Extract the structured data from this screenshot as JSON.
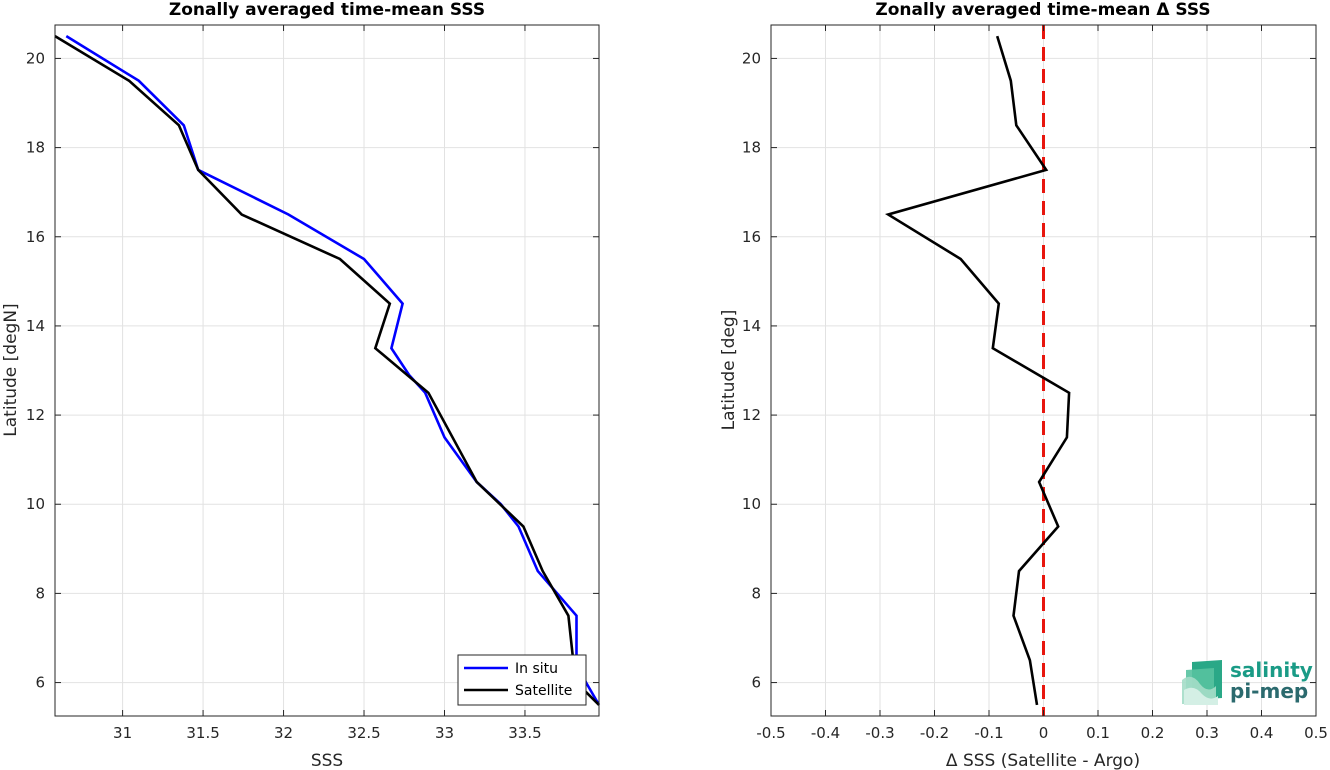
{
  "chart_data": [
    {
      "type": "line",
      "title": "Zonally averaged time-mean SSS",
      "xlabel": "SSS",
      "ylabel": "Latitude [degN]",
      "xlim": [
        30.58,
        33.96
      ],
      "ylim": [
        5.25,
        20.75
      ],
      "xticks": [
        31,
        31.5,
        32,
        32.5,
        33,
        33.5
      ],
      "xtick_labels": [
        "31",
        "31.5",
        "32",
        "32.5",
        "33",
        "33.5"
      ],
      "yticks": [
        6,
        8,
        10,
        12,
        14,
        16,
        18,
        20
      ],
      "ytick_labels": [
        "6",
        "8",
        "10",
        "12",
        "14",
        "16",
        "18",
        "20"
      ],
      "grid": true,
      "legend_position": "bottom-right",
      "series": [
        {
          "name": "In situ",
          "color": "#0000ff",
          "points": [
            [
              30.65,
              20.5
            ],
            [
              31.1,
              19.5
            ],
            [
              31.38,
              18.5
            ],
            [
              31.47,
              17.5
            ],
            [
              32.03,
              16.5
            ],
            [
              32.5,
              15.5
            ],
            [
              32.74,
              14.5
            ],
            [
              32.67,
              13.5
            ],
            [
              32.78,
              12.9
            ],
            [
              32.88,
              12.5
            ],
            [
              33.0,
              11.5
            ],
            [
              33.2,
              10.5
            ],
            [
              33.35,
              10.0
            ],
            [
              33.46,
              9.5
            ],
            [
              33.58,
              8.5
            ],
            [
              33.82,
              7.5
            ],
            [
              33.82,
              6.5
            ],
            [
              33.88,
              6.0
            ],
            [
              33.96,
              5.5
            ]
          ]
        },
        {
          "name": "Satellite",
          "color": "#000000",
          "points": [
            [
              30.58,
              20.5
            ],
            [
              31.04,
              19.5
            ],
            [
              31.35,
              18.5
            ],
            [
              31.47,
              17.5
            ],
            [
              31.74,
              16.5
            ],
            [
              32.35,
              15.5
            ],
            [
              32.66,
              14.5
            ],
            [
              32.57,
              13.5
            ],
            [
              32.9,
              12.5
            ],
            [
              33.2,
              10.5
            ],
            [
              33.49,
              9.5
            ],
            [
              33.61,
              8.5
            ],
            [
              33.77,
              7.5
            ],
            [
              33.8,
              6.5
            ],
            [
              33.82,
              6.0
            ],
            [
              33.96,
              5.5
            ]
          ]
        }
      ]
    },
    {
      "type": "line",
      "title": "Zonally averaged time-mean Δ SSS",
      "xlabel": "Δ SSS (Satellite - Argo)",
      "ylabel": "Latitude [deg]",
      "xlim": [
        -0.5,
        0.5
      ],
      "ylim": [
        5.25,
        20.75
      ],
      "xticks": [
        -0.5,
        -0.4,
        -0.3,
        -0.2,
        -0.1,
        0,
        0.1,
        0.2,
        0.3,
        0.4,
        0.5
      ],
      "xtick_labels": [
        "-0.5",
        "-0.4",
        "-0.3",
        "-0.2",
        "-0.1",
        "0",
        "0.1",
        "0.2",
        "0.3",
        "0.4",
        "0.5"
      ],
      "yticks": [
        6,
        8,
        10,
        12,
        14,
        16,
        18,
        20
      ],
      "ytick_labels": [
        "6",
        "8",
        "10",
        "12",
        "14",
        "16",
        "18",
        "20"
      ],
      "grid": true,
      "series": [
        {
          "color": "#000000",
          "points": [
            [
              -0.085,
              20.5
            ],
            [
              -0.06,
              19.5
            ],
            [
              -0.05,
              18.5
            ],
            [
              0.005,
              17.5
            ],
            [
              -0.285,
              16.5
            ],
            [
              -0.152,
              15.5
            ],
            [
              -0.082,
              14.5
            ],
            [
              -0.093,
              13.5
            ],
            [
              0.047,
              12.5
            ],
            [
              0.043,
              11.5
            ],
            [
              -0.008,
              10.5
            ],
            [
              0.027,
              9.5
            ],
            [
              -0.045,
              8.5
            ],
            [
              -0.055,
              7.5
            ],
            [
              -0.025,
              6.5
            ],
            [
              -0.012,
              5.5
            ]
          ]
        }
      ],
      "reference_line": {
        "x": 0,
        "color": "#e8160e",
        "style": "dashed"
      }
    }
  ],
  "logo": {
    "line1": "salinity",
    "line2": "pi-mep"
  }
}
